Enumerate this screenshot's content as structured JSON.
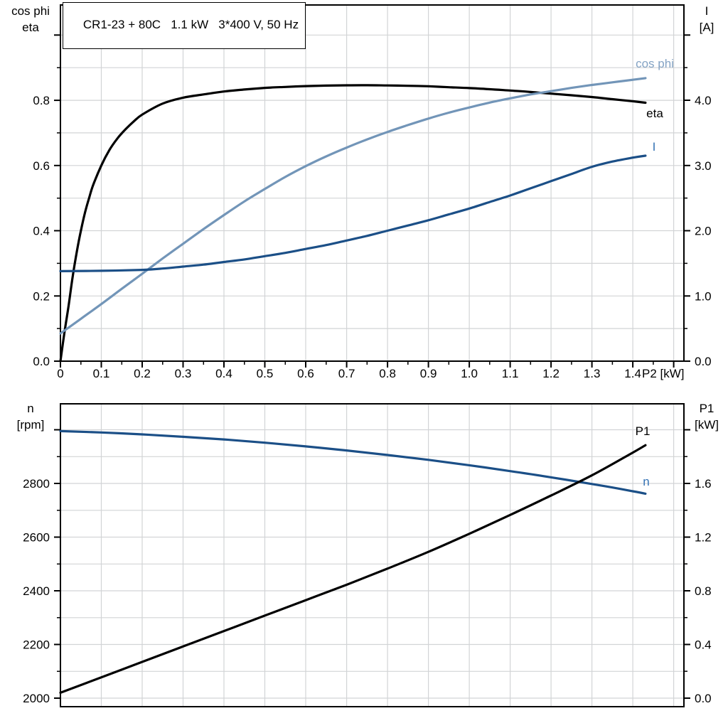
{
  "header": {
    "title": "CR1-23 + 80C   1.1 kW   3*400 V, 50 Hz"
  },
  "colors": {
    "black": "#000000",
    "steel_blue": "#7295b8",
    "steel_blue_label": "#84a3c4",
    "navy": "#1b4f87",
    "label_blue": "#3573b5",
    "grid": "#d2d4d6",
    "axis": "#000000",
    "background": "#ffffff"
  },
  "axis_corner_labels": {
    "top_left": [
      "cos phi",
      "eta"
    ],
    "top_right": [
      "I",
      "[A]"
    ],
    "bottom_left": [
      "n",
      "[rpm]"
    ],
    "bottom_right": [
      "P1",
      "[kW]"
    ]
  },
  "chart_data": [
    {
      "type": "line",
      "title": "CR1-23 + 80C   1.1 kW   3*400 V, 50 Hz",
      "x_axis": {
        "label": "P2 [kW]",
        "range": [
          0,
          1.525
        ],
        "major_tick_step": 0.1,
        "minor_tick_step": 0.05,
        "tick_label_max": 1.4,
        "tick_decimals": 1,
        "zero_label": "0",
        "show_ticks": true
      },
      "left_axis": {
        "label": "cos phi / eta",
        "range": [
          0,
          1.0923
        ],
        "major_tick_step": 0.2,
        "minor_tick_step": 0.1,
        "tick_label_max": 0.8,
        "tick_decimals": 1
      },
      "right_axis": {
        "label": "I [A]",
        "range": [
          0,
          5.4605
        ],
        "major_tick_step": 1,
        "minor_tick_step": 0.5,
        "tick_label_max": 4,
        "tick_decimals": 1
      },
      "grid": {
        "h_axis": "left",
        "h_step": 0.1,
        "v_step": 0.1
      },
      "series": [
        {
          "id": "eta",
          "label": "eta",
          "axis": "left",
          "color": "#000000",
          "label_color": "#000000",
          "points": [
            [
              0,
              0
            ],
            [
              0.01,
              0.09
            ],
            [
              0.02,
              0.17
            ],
            [
              0.03,
              0.26
            ],
            [
              0.04,
              0.335
            ],
            [
              0.05,
              0.4
            ],
            [
              0.06,
              0.455
            ],
            [
              0.07,
              0.5
            ],
            [
              0.08,
              0.54
            ],
            [
              0.1,
              0.6
            ],
            [
              0.12,
              0.648
            ],
            [
              0.14,
              0.684
            ],
            [
              0.16,
              0.712
            ],
            [
              0.18,
              0.736
            ],
            [
              0.2,
              0.756
            ],
            [
              0.25,
              0.79
            ],
            [
              0.3,
              0.808
            ],
            [
              0.35,
              0.818
            ],
            [
              0.4,
              0.827
            ],
            [
              0.45,
              0.833
            ],
            [
              0.5,
              0.838
            ],
            [
              0.55,
              0.841
            ],
            [
              0.6,
              0.8435
            ],
            [
              0.65,
              0.845
            ],
            [
              0.7,
              0.846
            ],
            [
              0.75,
              0.8462
            ],
            [
              0.8,
              0.8455
            ],
            [
              0.85,
              0.8445
            ],
            [
              0.9,
              0.843
            ],
            [
              0.95,
              0.84
            ],
            [
              1.0,
              0.8375
            ],
            [
              1.05,
              0.834
            ],
            [
              1.1,
              0.83
            ],
            [
              1.15,
              0.8255
            ],
            [
              1.2,
              0.8205
            ],
            [
              1.25,
              0.8155
            ],
            [
              1.3,
              0.81
            ],
            [
              1.35,
              0.8035
            ],
            [
              1.4,
              0.797
            ],
            [
              1.431,
              0.7925
            ]
          ]
        },
        {
          "id": "cos_phi",
          "label": "cos phi",
          "axis": "left",
          "color": "#7295b8",
          "label_color": "#84a3c4",
          "points": [
            [
              0,
              0.085
            ],
            [
              0.05,
              0.13
            ],
            [
              0.1,
              0.175
            ],
            [
              0.15,
              0.222
            ],
            [
              0.2,
              0.268
            ],
            [
              0.25,
              0.315
            ],
            [
              0.3,
              0.36
            ],
            [
              0.35,
              0.405
            ],
            [
              0.4,
              0.448
            ],
            [
              0.45,
              0.49
            ],
            [
              0.5,
              0.528
            ],
            [
              0.55,
              0.565
            ],
            [
              0.6,
              0.598
            ],
            [
              0.65,
              0.628
            ],
            [
              0.7,
              0.655
            ],
            [
              0.75,
              0.68
            ],
            [
              0.8,
              0.703
            ],
            [
              0.85,
              0.724
            ],
            [
              0.9,
              0.744
            ],
            [
              0.95,
              0.762
            ],
            [
              1.0,
              0.778
            ],
            [
              1.05,
              0.793
            ],
            [
              1.1,
              0.806
            ],
            [
              1.15,
              0.818
            ],
            [
              1.2,
              0.828
            ],
            [
              1.25,
              0.838
            ],
            [
              1.3,
              0.847
            ],
            [
              1.35,
              0.855
            ],
            [
              1.4,
              0.863
            ],
            [
              1.431,
              0.868
            ]
          ]
        },
        {
          "id": "I",
          "label": "I",
          "axis": "right",
          "color": "#1b4f87",
          "label_color": "#3573b5",
          "points": [
            [
              0,
              1.38
            ],
            [
              0.1,
              1.385
            ],
            [
              0.2,
              1.4
            ],
            [
              0.25,
              1.42
            ],
            [
              0.3,
              1.45
            ],
            [
              0.35,
              1.48
            ],
            [
              0.4,
              1.52
            ],
            [
              0.45,
              1.56
            ],
            [
              0.5,
              1.61
            ],
            [
              0.55,
              1.66
            ],
            [
              0.6,
              1.72
            ],
            [
              0.65,
              1.78
            ],
            [
              0.7,
              1.85
            ],
            [
              0.75,
              1.92
            ],
            [
              0.8,
              2.0
            ],
            [
              0.85,
              2.08
            ],
            [
              0.9,
              2.16
            ],
            [
              0.95,
              2.25
            ],
            [
              1.0,
              2.34
            ],
            [
              1.05,
              2.44
            ],
            [
              1.1,
              2.54
            ],
            [
              1.15,
              2.65
            ],
            [
              1.2,
              2.76
            ],
            [
              1.25,
              2.87
            ],
            [
              1.3,
              2.98
            ],
            [
              1.35,
              3.06
            ],
            [
              1.4,
              3.12
            ],
            [
              1.431,
              3.15
            ]
          ]
        }
      ]
    },
    {
      "type": "line",
      "title": "",
      "x_axis": {
        "label": "",
        "range": [
          0,
          1.525
        ],
        "major_tick_step": 0.1,
        "minor_tick_step": 0.05,
        "tick_label_max": -1,
        "tick_decimals": 1,
        "zero_label": "0",
        "show_ticks": false
      },
      "left_axis": {
        "label": "n [rpm]",
        "range": [
          1968.3,
          3096.8
        ],
        "major_tick_step": 200,
        "minor_tick_step": 100,
        "tick_label_max": 2800,
        "tick_decimals": 0
      },
      "right_axis": {
        "label": "P1 [kW]",
        "range": [
          -0.0636,
          2.1932
        ],
        "major_tick_step": 0.4,
        "minor_tick_step": 0.2,
        "tick_label_max": 1.6,
        "tick_decimals": 1
      },
      "grid": {
        "h_axis": "left",
        "h_step": 100,
        "v_step": 0.1
      },
      "series": [
        {
          "id": "n",
          "label": "n",
          "axis": "left",
          "color": "#1b4f87",
          "label_color": "#3573b5",
          "points": [
            [
              0,
              2995
            ],
            [
              0.1,
              2990
            ],
            [
              0.2,
              2983
            ],
            [
              0.3,
              2974
            ],
            [
              0.4,
              2964
            ],
            [
              0.5,
              2952
            ],
            [
              0.6,
              2938
            ],
            [
              0.7,
              2923
            ],
            [
              0.8,
              2906
            ],
            [
              0.9,
              2888
            ],
            [
              1.0,
              2868
            ],
            [
              1.1,
              2846
            ],
            [
              1.2,
              2823
            ],
            [
              1.3,
              2798
            ],
            [
              1.35,
              2785
            ],
            [
              1.4,
              2771
            ],
            [
              1.431,
              2762
            ]
          ]
        },
        {
          "id": "P1",
          "label": "P1",
          "axis": "right",
          "color": "#000000",
          "label_color": "#000000",
          "points": [
            [
              0,
              0.04
            ],
            [
              0.1,
              0.155
            ],
            [
              0.2,
              0.27
            ],
            [
              0.3,
              0.385
            ],
            [
              0.4,
              0.5
            ],
            [
              0.5,
              0.615
            ],
            [
              0.6,
              0.73
            ],
            [
              0.7,
              0.845
            ],
            [
              0.8,
              0.965
            ],
            [
              0.9,
              1.09
            ],
            [
              1.0,
              1.225
            ],
            [
              1.1,
              1.365
            ],
            [
              1.2,
              1.51
            ],
            [
              1.3,
              1.66
            ],
            [
              1.4,
              1.83
            ],
            [
              1.431,
              1.885
            ]
          ]
        }
      ]
    }
  ]
}
